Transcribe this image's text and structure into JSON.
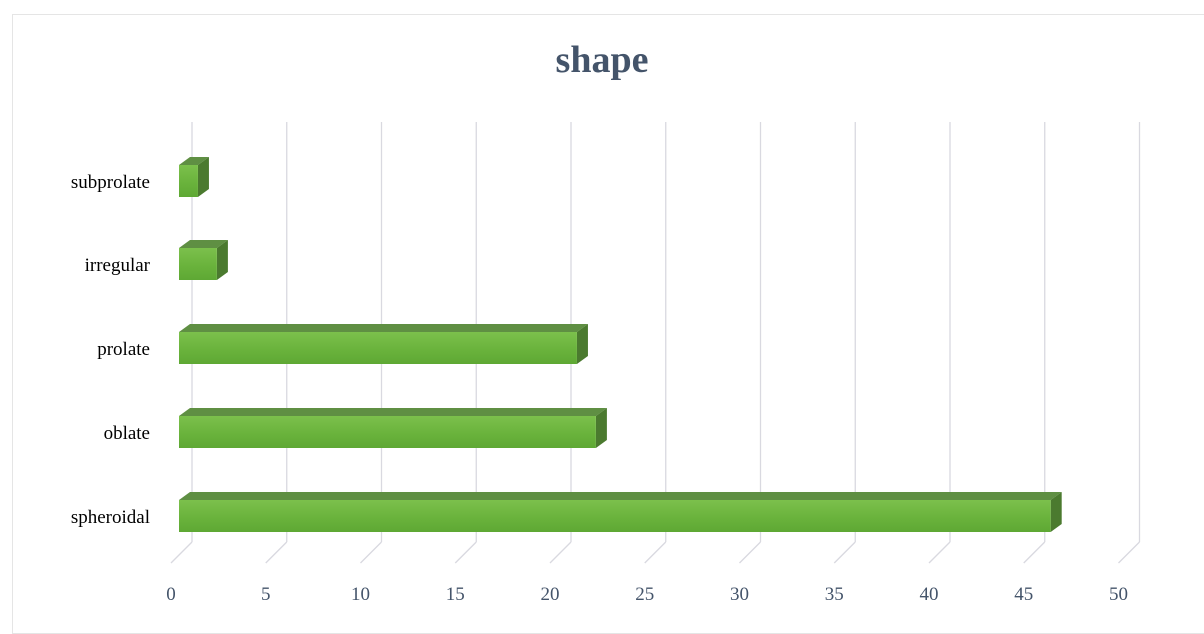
{
  "chart_data": {
    "type": "bar",
    "orientation": "horizontal",
    "style": "3d",
    "title": "shape",
    "categories": [
      "spheroidal",
      "oblate",
      "prolate",
      "irregular",
      "subprolate"
    ],
    "values": [
      46,
      22,
      21,
      2,
      1
    ],
    "xlim": [
      0,
      50
    ],
    "xticks": [
      0,
      5,
      10,
      15,
      20,
      25,
      30,
      35,
      40,
      45,
      50
    ],
    "xlabel": "",
    "ylabel": "",
    "grid": true,
    "legend": "none",
    "colors": {
      "bar_front": "#6db33f",
      "bar_top": "#5f8f43",
      "bar_side": "#4b7a2f",
      "grid": "#d9d9e0",
      "title": "#44546a",
      "tick_text": "#44546a"
    }
  }
}
